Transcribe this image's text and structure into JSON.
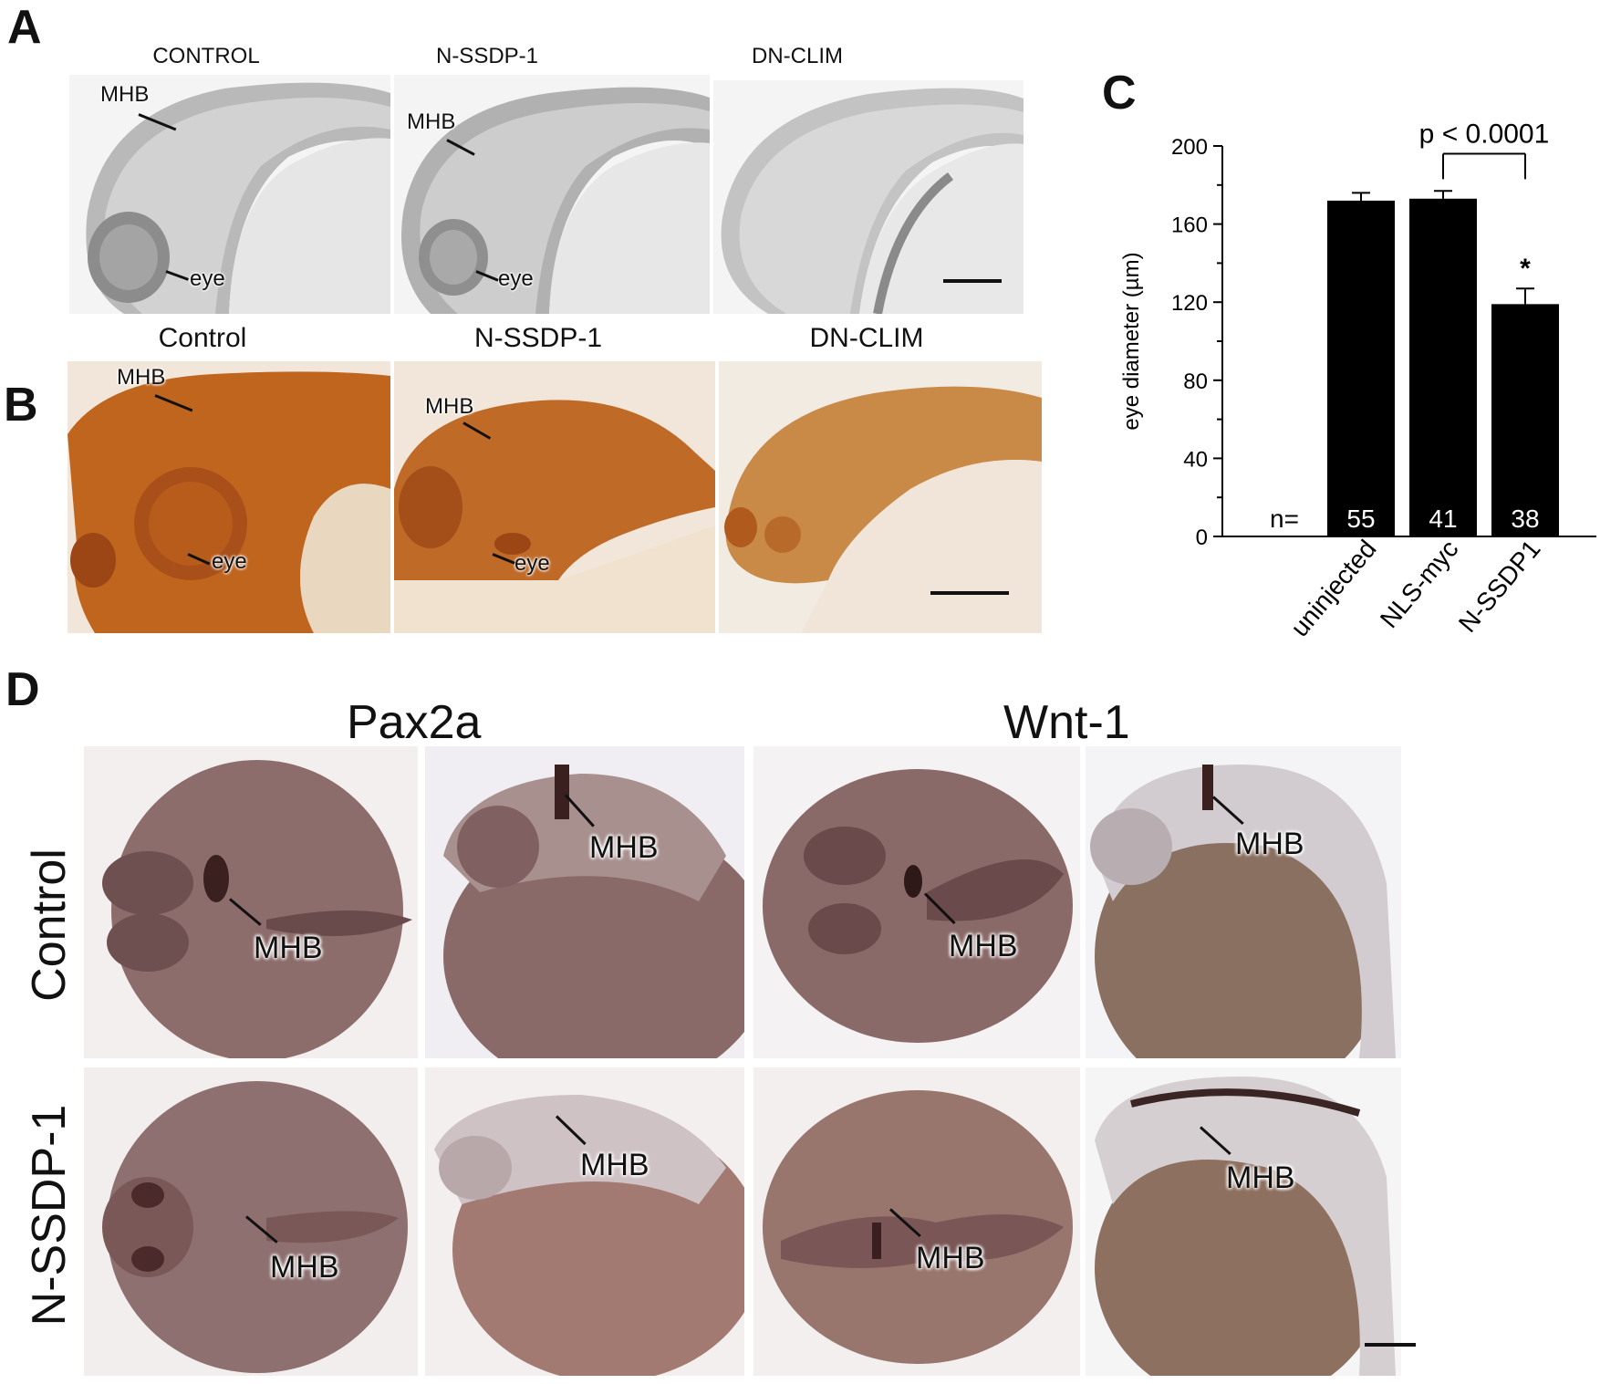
{
  "panels": {
    "A": {
      "letter": "A",
      "titles": [
        "CONTROL",
        "N-SSDP-1",
        "DN-CLIM"
      ],
      "labels": {
        "mhb": "MHB",
        "eye": "eye"
      }
    },
    "B": {
      "letter": "B",
      "titles": [
        "Control",
        "N-SSDP-1",
        "DN-CLIM"
      ],
      "labels": {
        "mhb": "MHB",
        "eye": "eye"
      }
    },
    "C": {
      "letter": "C"
    },
    "D": {
      "letter": "D",
      "genes": [
        "Pax2a",
        "Wnt-1"
      ],
      "rows": [
        "Control",
        "N-SSDP-1"
      ],
      "label": "MHB"
    }
  },
  "colors": {
    "bar": "#000000",
    "panelA_bg": "#d7d7d7",
    "panelB_tissue": "#c0651e",
    "panelD_embryo": "#8a6a68"
  },
  "chart_data": {
    "type": "bar",
    "categories": [
      "uninjected",
      "NLS-myc",
      "N-SSDP1"
    ],
    "values": [
      172,
      173,
      119
    ],
    "errors": [
      4,
      4,
      8
    ],
    "n": [
      55,
      41,
      38
    ],
    "n_label": "n=",
    "ylabel": "eye diameter (µm)",
    "ylim": [
      0,
      200
    ],
    "yticks": [
      0,
      40,
      80,
      120,
      160,
      200
    ],
    "annotation": "p < 0.0001",
    "significance_marker": "*",
    "grid": false
  }
}
